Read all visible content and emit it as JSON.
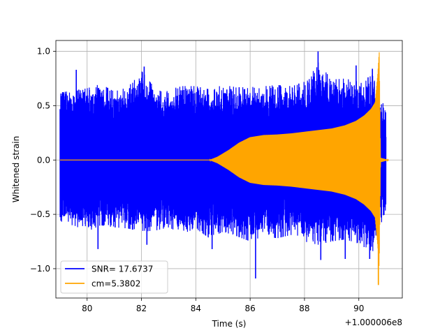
{
  "chart_data": {
    "type": "line",
    "title": "",
    "xlabel": "Time (s)",
    "ylabel": "Whitened strain",
    "x_offset_label": "+1.000006e8",
    "xlim": [
      78.85,
      91.6
    ],
    "ylim": [
      -1.27,
      1.1
    ],
    "xticks": [
      80,
      82,
      84,
      86,
      88,
      90
    ],
    "xtick_labels": [
      "80",
      "82",
      "84",
      "86",
      "88",
      "90"
    ],
    "yticks": [
      -1.0,
      -0.5,
      0.0,
      0.5,
      1.0
    ],
    "ytick_labels": [
      "−1.0",
      "−0.5",
      "0.0",
      "0.5",
      "1.0"
    ],
    "grid": true,
    "legend_position": "lower-left",
    "series": [
      {
        "name": "SNR= 17.6737",
        "color": "#0000ff",
        "style": "noisy whitened data",
        "x": [
          79.0,
          79.5,
          80.0,
          80.5,
          81.0,
          81.5,
          82.0,
          82.5,
          83.0,
          83.5,
          84.0,
          84.5,
          85.0,
          85.5,
          86.0,
          86.5,
          87.0,
          87.5,
          88.0,
          88.5,
          89.0,
          89.5,
          90.0,
          90.5,
          91.0
        ],
        "upper_envelope": [
          0.62,
          0.64,
          0.66,
          0.7,
          0.63,
          0.67,
          0.82,
          0.66,
          0.65,
          0.68,
          0.68,
          0.65,
          0.69,
          0.67,
          0.67,
          0.68,
          0.69,
          0.68,
          0.72,
          0.9,
          0.74,
          0.75,
          0.72,
          0.78,
          0.45
        ],
        "lower_envelope": [
          -0.6,
          -0.6,
          -0.66,
          -0.6,
          -0.62,
          -0.63,
          -0.66,
          -0.65,
          -0.62,
          -0.68,
          -0.63,
          -0.72,
          -0.66,
          -0.7,
          -0.75,
          -0.7,
          -0.72,
          -0.69,
          -0.75,
          -0.78,
          -0.75,
          -0.73,
          -0.77,
          -0.85,
          -0.45
        ],
        "spikes": [
          {
            "x": 79.6,
            "y": 0.83
          },
          {
            "x": 80.4,
            "y": -0.82
          },
          {
            "x": 82.1,
            "y": 0.86
          },
          {
            "x": 82.2,
            "y": -0.78
          },
          {
            "x": 84.6,
            "y": -0.82
          },
          {
            "x": 86.2,
            "y": -1.09
          },
          {
            "x": 88.5,
            "y": 1.0
          },
          {
            "x": 88.6,
            "y": -0.92
          },
          {
            "x": 89.5,
            "y": -0.91
          },
          {
            "x": 89.9,
            "y": 0.87
          },
          {
            "x": 90.4,
            "y": -0.91
          },
          {
            "x": 90.5,
            "y": 0.84
          }
        ]
      },
      {
        "name": "cm=5.3802",
        "color": "#ffa500",
        "style": "chirp template",
        "x": [
          79.0,
          84.5,
          84.8,
          85.2,
          85.6,
          86.0,
          86.5,
          87.0,
          87.5,
          88.0,
          88.5,
          89.0,
          89.5,
          89.9,
          90.2,
          90.45,
          90.6,
          90.7,
          90.75,
          90.8,
          91.1
        ],
        "amplitude": [
          0.0,
          0.0,
          0.03,
          0.09,
          0.16,
          0.21,
          0.23,
          0.235,
          0.245,
          0.26,
          0.275,
          0.29,
          0.32,
          0.36,
          0.41,
          0.47,
          0.53,
          0.8,
          1.0,
          0.02,
          0.0
        ],
        "min_spike": {
          "x": 90.72,
          "y": -1.15
        }
      }
    ]
  }
}
